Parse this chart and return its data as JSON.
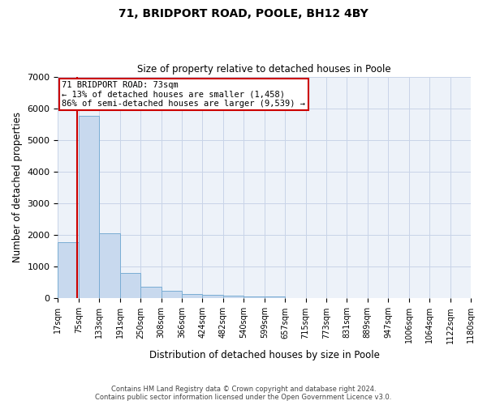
{
  "title": "71, BRIDPORT ROAD, POOLE, BH12 4BY",
  "subtitle": "Size of property relative to detached houses in Poole",
  "xlabel": "Distribution of detached houses by size in Poole",
  "ylabel": "Number of detached properties",
  "bar_color": "#c8d9ee",
  "bar_edge_color": "#7aadd4",
  "grid_color": "#c8d4e8",
  "background_color": "#edf2f9",
  "bin_labels": [
    "17sqm",
    "75sqm",
    "133sqm",
    "191sqm",
    "250sqm",
    "308sqm",
    "366sqm",
    "424sqm",
    "482sqm",
    "540sqm",
    "599sqm",
    "657sqm",
    "715sqm",
    "773sqm",
    "831sqm",
    "889sqm",
    "947sqm",
    "1006sqm",
    "1064sqm",
    "1122sqm",
    "1180sqm"
  ],
  "bar_values": [
    1780,
    5750,
    2060,
    810,
    370,
    230,
    130,
    120,
    80,
    60,
    75,
    0,
    0,
    0,
    0,
    0,
    0,
    0,
    0,
    0
  ],
  "ylim": [
    0,
    7000
  ],
  "yticks": [
    0,
    1000,
    2000,
    3000,
    4000,
    5000,
    6000,
    7000
  ],
  "property_label": "71 BRIDPORT ROAD: 73sqm",
  "annotation_line1": "← 13% of detached houses are smaller (1,458)",
  "annotation_line2": "86% of semi-detached houses are larger (9,539) →",
  "red_line_color": "#cc0000",
  "annotation_box_color": "#ffffff",
  "annotation_box_edge": "#cc0000",
  "footer_line1": "Contains HM Land Registry data © Crown copyright and database right 2024.",
  "footer_line2": "Contains public sector information licensed under the Open Government Licence v3.0."
}
